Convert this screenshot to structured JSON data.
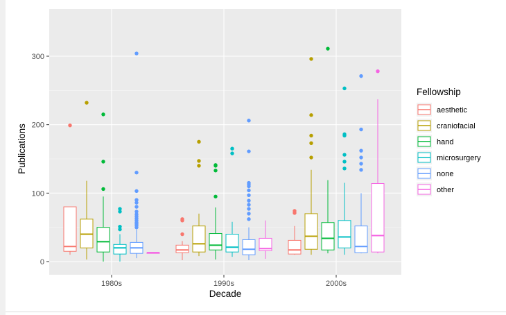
{
  "chart_data": {
    "type": "boxplot",
    "title": "",
    "xlabel": "Decade",
    "ylabel": "Publications",
    "ylim": [
      -25,
      355
    ],
    "yticks": [
      0,
      100,
      200,
      300
    ],
    "grid": true,
    "categories": [
      "1980s",
      "1990s",
      "2000s"
    ],
    "legend": {
      "title": "Fellowship",
      "position": "right"
    },
    "series": [
      {
        "name": "aesthetic",
        "color": "#F8766D",
        "boxes": [
          {
            "category": "1980s",
            "whisker_low": 10,
            "q1": 15,
            "median": 22,
            "q3": 80,
            "whisker_high": 80,
            "outliers": [
              199
            ]
          },
          {
            "category": "1990s",
            "whisker_low": 2,
            "q1": 13,
            "median": 17,
            "q3": 24,
            "whisker_high": 30,
            "outliers": [
              40,
              60,
              62
            ]
          },
          {
            "category": "2000s",
            "whisker_low": 10,
            "q1": 11,
            "median": 17,
            "q3": 31,
            "whisker_high": 52,
            "outliers": [
              71,
              74
            ]
          }
        ]
      },
      {
        "name": "craniofacial",
        "color": "#B79F00",
        "boxes": [
          {
            "category": "1980s",
            "whisker_low": 3,
            "q1": 20,
            "median": 40,
            "q3": 62,
            "whisker_high": 118,
            "outliers": [
              232
            ]
          },
          {
            "category": "1990s",
            "whisker_low": 8,
            "q1": 14,
            "median": 26,
            "q3": 52,
            "whisker_high": 70,
            "outliers": [
              140,
              147,
              175
            ]
          },
          {
            "category": "2000s",
            "whisker_low": 10,
            "q1": 18,
            "median": 37,
            "q3": 70,
            "whisker_high": 134,
            "outliers": [
              152,
              173,
              184,
              214,
              296
            ]
          }
        ]
      },
      {
        "name": "hand",
        "color": "#00BA38",
        "boxes": [
          {
            "category": "1980s",
            "whisker_low": 0,
            "q1": 14,
            "median": 29,
            "q3": 50,
            "whisker_high": 95,
            "outliers": [
              106,
              146,
              215
            ]
          },
          {
            "category": "1990s",
            "whisker_low": 3,
            "q1": 17,
            "median": 24,
            "q3": 41,
            "whisker_high": 79,
            "outliers": [
              95,
              133,
              140,
              141
            ]
          },
          {
            "category": "2000s",
            "whisker_low": 12,
            "q1": 17,
            "median": 34,
            "q3": 57,
            "whisker_high": 119,
            "outliers": [
              311
            ]
          }
        ]
      },
      {
        "name": "microsurgery",
        "color": "#00BFC4",
        "boxes": [
          {
            "category": "1980s",
            "whisker_low": 0,
            "q1": 11,
            "median": 20,
            "q3": 25,
            "whisker_high": 40,
            "outliers": [
              47,
              51,
              73,
              77
            ]
          },
          {
            "category": "1990s",
            "whisker_low": 7,
            "q1": 14,
            "median": 21,
            "q3": 40,
            "whisker_high": 58,
            "outliers": [
              158,
              165
            ]
          },
          {
            "category": "2000s",
            "whisker_low": 10,
            "q1": 20,
            "median": 36,
            "q3": 60,
            "whisker_high": 115,
            "outliers": [
              136,
              146,
              156,
              184,
              186,
              253
            ]
          }
        ]
      },
      {
        "name": "none",
        "color": "#619CFF",
        "boxes": [
          {
            "category": "1980s",
            "whisker_low": 5,
            "q1": 12,
            "median": 20,
            "q3": 28,
            "whisker_high": 47,
            "outliers": [
              50,
              53,
              55,
              57,
              60,
              63,
              66,
              69,
              73,
              80,
              86,
              90,
              103,
              130,
              304
            ]
          },
          {
            "category": "1990s",
            "whisker_low": 2,
            "q1": 10,
            "median": 18,
            "q3": 32,
            "whisker_high": 50,
            "outliers": [
              62,
              70,
              77,
              83,
              89,
              97,
              104,
              110,
              113,
              115,
              161,
              206
            ]
          },
          {
            "category": "2000s",
            "whisker_low": 12,
            "q1": 13,
            "median": 22,
            "q3": 52,
            "whisker_high": 100,
            "outliers": [
              134,
              143,
              152,
              162,
              193,
              271
            ]
          }
        ]
      },
      {
        "name": "other",
        "color": "#F564E3",
        "boxes": [
          {
            "category": "1980s",
            "whisker_low": 12,
            "q1": 12,
            "median": 13,
            "q3": 13,
            "whisker_high": 13,
            "outliers": []
          },
          {
            "category": "1990s",
            "whisker_low": 4,
            "q1": 16,
            "median": 19,
            "q3": 34,
            "whisker_high": 60,
            "outliers": []
          },
          {
            "category": "2000s",
            "whisker_low": 12,
            "q1": 14,
            "median": 38,
            "q3": 114,
            "whisker_high": 237,
            "outliers": [
              278
            ]
          }
        ]
      }
    ]
  }
}
